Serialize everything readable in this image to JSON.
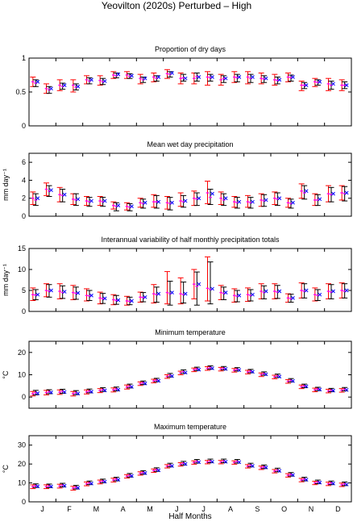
{
  "figure_title": "Yeovilton (2020s) Perturbed – High",
  "x_axis_label": "Half Months",
  "month_labels": [
    "J",
    "F",
    "M",
    "A",
    "M",
    "J",
    "J",
    "A",
    "S",
    "O",
    "N",
    "D"
  ],
  "colors": {
    "red": "#ff0000",
    "black": "#000000",
    "blue": "#0000ff",
    "magenta": "#ff00ff"
  },
  "legend_note": "",
  "chart_data": [
    {
      "type": "scatter",
      "title": "Proportion of dry days",
      "ylabel": "",
      "ylim": [
        0,
        1
      ],
      "yticks": [
        0,
        0.5,
        1
      ],
      "x": [
        1,
        2,
        3,
        4,
        5,
        6,
        7,
        8,
        9,
        10,
        11,
        12,
        13,
        14,
        15,
        16,
        17,
        18,
        19,
        20,
        21,
        22,
        23,
        24
      ],
      "series": [
        {
          "values": [
            0.65,
            0.55,
            0.6,
            0.6,
            0.68,
            0.67,
            0.75,
            0.75,
            0.7,
            0.72,
            0.77,
            0.7,
            0.7,
            0.72,
            0.68,
            0.72,
            0.72,
            0.7,
            0.68,
            0.72,
            0.6,
            0.65,
            0.62,
            0.6
          ],
          "low": [
            0.58,
            0.48,
            0.52,
            0.5,
            0.62,
            0.6,
            0.7,
            0.7,
            0.62,
            0.65,
            0.7,
            0.62,
            0.62,
            0.6,
            0.6,
            0.64,
            0.62,
            0.62,
            0.6,
            0.65,
            0.52,
            0.58,
            0.52,
            0.52
          ],
          "high": [
            0.72,
            0.62,
            0.68,
            0.68,
            0.74,
            0.74,
            0.8,
            0.8,
            0.76,
            0.78,
            0.83,
            0.78,
            0.78,
            0.8,
            0.76,
            0.8,
            0.8,
            0.78,
            0.76,
            0.78,
            0.66,
            0.7,
            0.7,
            0.68
          ]
        },
        {
          "values": [
            0.63,
            0.53,
            0.58,
            0.57,
            0.66,
            0.65,
            0.74,
            0.73,
            0.68,
            0.7,
            0.76,
            0.71,
            0.73,
            0.71,
            0.7,
            0.71,
            0.7,
            0.69,
            0.67,
            0.71,
            0.6,
            0.64,
            0.6,
            0.6
          ],
          "low": [
            0.58,
            0.48,
            0.54,
            0.53,
            0.62,
            0.61,
            0.71,
            0.7,
            0.64,
            0.66,
            0.72,
            0.66,
            0.66,
            0.66,
            0.64,
            0.65,
            0.64,
            0.64,
            0.62,
            0.66,
            0.55,
            0.6,
            0.54,
            0.55
          ],
          "high": [
            0.68,
            0.58,
            0.63,
            0.62,
            0.71,
            0.7,
            0.78,
            0.77,
            0.72,
            0.74,
            0.8,
            0.76,
            0.78,
            0.76,
            0.74,
            0.76,
            0.76,
            0.74,
            0.72,
            0.75,
            0.64,
            0.68,
            0.66,
            0.65
          ]
        },
        {
          "values": [
            0.65,
            0.55,
            0.6,
            0.58,
            0.68,
            0.66,
            0.76,
            0.74,
            0.7,
            0.72,
            0.78,
            0.7,
            0.72,
            0.72,
            0.7,
            0.72,
            0.72,
            0.7,
            0.68,
            0.72,
            0.6,
            0.65,
            0.62,
            0.6
          ]
        }
      ]
    },
    {
      "type": "scatter",
      "title": "Mean wet day precipitation",
      "ylabel": "mm day⁻¹",
      "ylim": [
        0,
        7
      ],
      "yticks": [
        0,
        2,
        4,
        6
      ],
      "x": [
        1,
        2,
        3,
        4,
        5,
        6,
        7,
        8,
        9,
        10,
        11,
        12,
        13,
        14,
        15,
        16,
        17,
        18,
        19,
        20,
        21,
        22,
        23,
        24
      ],
      "series": [
        {
          "values": [
            2.0,
            3.0,
            2.4,
            1.9,
            1.7,
            1.7,
            1.2,
            1.1,
            1.5,
            1.6,
            1.5,
            1.7,
            2.0,
            2.6,
            2.0,
            1.6,
            1.6,
            1.8,
            2.0,
            1.5,
            2.8,
            1.8,
            2.5,
            2.6
          ],
          "low": [
            1.3,
            2.3,
            1.6,
            1.3,
            1.2,
            1.2,
            0.8,
            0.7,
            1.0,
            1.0,
            0.8,
            1.1,
            1.2,
            1.4,
            1.3,
            1.0,
            1.0,
            1.1,
            1.3,
            1.0,
            2.0,
            1.2,
            1.6,
            1.8
          ],
          "high": [
            2.7,
            3.7,
            3.2,
            2.5,
            2.2,
            2.2,
            1.6,
            1.5,
            2.0,
            2.4,
            2.2,
            2.6,
            2.8,
            3.9,
            2.7,
            2.2,
            2.3,
            2.5,
            2.7,
            2.0,
            3.6,
            2.5,
            3.4,
            3.4
          ]
        },
        {
          "values": [
            1.8,
            2.8,
            2.3,
            1.8,
            1.6,
            1.6,
            1.1,
            1.0,
            1.4,
            1.6,
            1.4,
            1.6,
            1.9,
            2.1,
            1.8,
            1.5,
            1.5,
            1.7,
            1.9,
            1.4,
            2.6,
            1.8,
            2.4,
            2.5
          ],
          "low": [
            1.2,
            2.2,
            1.6,
            1.2,
            1.1,
            1.1,
            0.6,
            0.6,
            0.9,
            0.9,
            0.7,
            1.0,
            1.2,
            1.3,
            1.2,
            0.9,
            0.9,
            1.1,
            1.2,
            0.9,
            1.9,
            1.2,
            1.6,
            1.7
          ],
          "high": [
            2.5,
            3.4,
            3.0,
            2.5,
            2.1,
            2.1,
            1.5,
            1.4,
            1.9,
            2.3,
            2.1,
            2.3,
            2.6,
            3.0,
            2.5,
            2.1,
            2.1,
            2.4,
            2.6,
            1.9,
            3.4,
            2.4,
            3.2,
            3.3
          ]
        },
        {
          "values": [
            2.0,
            2.9,
            2.4,
            1.9,
            1.7,
            1.7,
            1.2,
            1.1,
            1.5,
            1.6,
            1.5,
            1.7,
            2.0,
            2.5,
            2.0,
            1.6,
            1.6,
            1.8,
            2.0,
            1.5,
            2.8,
            1.9,
            2.5,
            2.6
          ]
        }
      ]
    },
    {
      "type": "scatter",
      "title": "Interannual variability of half monthly precipitation totals",
      "ylabel": "mm day⁻¹",
      "ylim": [
        0,
        15
      ],
      "yticks": [
        0,
        5,
        10,
        15
      ],
      "x": [
        1,
        2,
        3,
        4,
        5,
        6,
        7,
        8,
        9,
        10,
        11,
        12,
        13,
        14,
        15,
        16,
        17,
        18,
        19,
        20,
        21,
        22,
        23,
        24
      ],
      "series": [
        {
          "values": [
            4.0,
            5.0,
            4.8,
            4.5,
            3.8,
            3.2,
            2.8,
            2.5,
            3.4,
            4.2,
            4.5,
            4.2,
            6.5,
            5.5,
            4.5,
            3.8,
            4.0,
            4.8,
            4.8,
            3.2,
            5.0,
            4.0,
            4.8,
            5.0
          ],
          "low": [
            2.6,
            3.5,
            3.0,
            2.8,
            2.5,
            1.8,
            1.6,
            1.5,
            2.2,
            2.0,
            1.8,
            1.8,
            3.0,
            2.5,
            2.8,
            2.2,
            2.4,
            3.0,
            3.0,
            2.2,
            3.2,
            2.5,
            3.0,
            3.2
          ],
          "high": [
            5.6,
            6.6,
            6.6,
            6.2,
            5.4,
            4.6,
            4.0,
            3.6,
            4.6,
            6.4,
            9.5,
            8.0,
            10.0,
            13.0,
            6.2,
            5.4,
            5.6,
            6.6,
            6.6,
            4.2,
            6.8,
            5.6,
            6.6,
            6.8
          ]
        },
        {
          "values": [
            3.9,
            4.8,
            4.5,
            4.3,
            3.7,
            3.0,
            2.6,
            2.4,
            3.3,
            4.0,
            4.2,
            4.0,
            6.0,
            5.2,
            4.3,
            3.6,
            3.8,
            4.5,
            4.6,
            3.0,
            4.8,
            3.8,
            4.6,
            4.8
          ],
          "low": [
            2.8,
            3.4,
            3.1,
            2.9,
            2.6,
            1.9,
            1.7,
            1.6,
            2.3,
            2.2,
            1.5,
            2.0,
            1.5,
            1.8,
            2.8,
            2.3,
            2.5,
            3.0,
            3.1,
            2.2,
            3.2,
            2.6,
            3.0,
            3.2
          ],
          "high": [
            5.2,
            6.4,
            6.1,
            5.8,
            5.0,
            4.3,
            3.8,
            3.4,
            4.5,
            5.8,
            7.2,
            7.0,
            9.4,
            11.8,
            5.8,
            5.0,
            5.2,
            6.1,
            6.2,
            4.1,
            6.6,
            5.2,
            6.4,
            6.6
          ]
        },
        {
          "values": [
            4.0,
            5.0,
            4.7,
            4.4,
            3.8,
            3.1,
            2.7,
            2.5,
            3.4,
            4.2,
            4.5,
            4.2,
            6.5,
            5.4,
            4.5,
            3.8,
            4.0,
            4.8,
            4.8,
            3.2,
            5.0,
            4.0,
            4.8,
            5.0
          ]
        }
      ]
    },
    {
      "type": "scatter",
      "title": "Minimum temperature",
      "ylabel": "°C",
      "ylim": [
        -5,
        25
      ],
      "yticks": [
        0,
        10,
        20
      ],
      "x": [
        1,
        2,
        3,
        4,
        5,
        6,
        7,
        8,
        9,
        10,
        11,
        12,
        13,
        14,
        15,
        16,
        17,
        18,
        19,
        20,
        21,
        22,
        23,
        24
      ],
      "series": [
        {
          "values": [
            1.5,
            2.0,
            2.2,
            1.5,
            2.3,
            2.9,
            3.2,
            4.5,
            6.0,
            7.2,
            9.2,
            10.8,
            12.2,
            12.8,
            12.5,
            12.0,
            11.2,
            10.0,
            9.0,
            7.0,
            4.6,
            3.2,
            2.7,
            3.0
          ],
          "low": [
            0.5,
            1.0,
            1.2,
            0.5,
            1.4,
            2.0,
            2.3,
            3.6,
            5.2,
            6.4,
            8.4,
            10.0,
            11.4,
            12.0,
            11.7,
            11.2,
            10.4,
            9.2,
            8.2,
            6.2,
            3.8,
            2.4,
            1.9,
            2.2
          ],
          "high": [
            2.5,
            3.0,
            3.2,
            2.5,
            3.2,
            3.8,
            4.1,
            5.4,
            6.8,
            8.0,
            10.0,
            11.6,
            13.0,
            13.6,
            13.3,
            12.8,
            12.0,
            10.8,
            9.8,
            7.8,
            5.4,
            4.0,
            3.5,
            3.8
          ]
        },
        {
          "values": [
            2.0,
            2.4,
            2.6,
            2.0,
            2.7,
            3.3,
            3.6,
            4.9,
            6.4,
            7.6,
            9.8,
            11.4,
            12.6,
            13.2,
            12.9,
            12.4,
            11.6,
            10.5,
            9.5,
            7.5,
            5.0,
            3.6,
            3.1,
            3.5
          ],
          "low": [
            1.0,
            1.5,
            1.7,
            1.1,
            1.9,
            2.5,
            2.8,
            4.1,
            5.6,
            6.9,
            9.0,
            10.6,
            11.9,
            12.5,
            12.2,
            11.7,
            10.9,
            9.8,
            8.8,
            6.8,
            4.2,
            2.9,
            2.4,
            2.8
          ],
          "high": [
            3.0,
            3.3,
            3.5,
            2.9,
            3.6,
            4.2,
            4.5,
            5.8,
            7.2,
            8.4,
            10.6,
            12.2,
            13.4,
            14.0,
            13.7,
            13.2,
            12.4,
            11.3,
            10.3,
            8.3,
            5.8,
            4.4,
            3.9,
            4.3
          ]
        },
        {
          "values": [
            1.7,
            2.1,
            2.3,
            1.6,
            2.4,
            3.0,
            3.3,
            4.6,
            6.1,
            7.3,
            9.4,
            11.0,
            12.3,
            12.9,
            12.6,
            12.1,
            11.3,
            10.2,
            9.2,
            7.2,
            4.8,
            3.4,
            2.9,
            3.2
          ]
        }
      ]
    },
    {
      "type": "scatter",
      "title": "Maximum temperature",
      "ylabel": "°C",
      "ylim": [
        0,
        35
      ],
      "yticks": [
        0,
        10,
        20,
        30
      ],
      "x": [
        1,
        2,
        3,
        4,
        5,
        6,
        7,
        8,
        9,
        10,
        11,
        12,
        13,
        14,
        15,
        16,
        17,
        18,
        19,
        20,
        21,
        22,
        23,
        24
      ],
      "series": [
        {
          "values": [
            8.0,
            8.0,
            8.3,
            7.2,
            9.5,
            10.5,
            11.5,
            13.5,
            15.0,
            16.5,
            18.8,
            19.8,
            20.8,
            21.0,
            21.0,
            20.8,
            18.8,
            18.0,
            16.2,
            14.0,
            11.5,
            10.0,
            9.5,
            9.0
          ],
          "low": [
            7.0,
            7.0,
            7.3,
            6.2,
            8.5,
            9.5,
            10.5,
            12.6,
            14.1,
            15.6,
            17.9,
            18.9,
            19.9,
            20.1,
            20.1,
            19.9,
            17.9,
            17.1,
            15.3,
            13.1,
            10.6,
            9.1,
            8.6,
            8.1
          ],
          "high": [
            9.0,
            9.0,
            9.3,
            8.2,
            10.5,
            11.5,
            12.5,
            14.4,
            15.9,
            17.4,
            19.7,
            20.7,
            21.7,
            21.9,
            21.9,
            21.7,
            19.7,
            18.9,
            17.1,
            14.9,
            12.4,
            10.9,
            10.4,
            9.9
          ]
        },
        {
          "values": [
            8.5,
            8.4,
            8.8,
            7.7,
            10.0,
            11.0,
            12.0,
            14.0,
            15.5,
            17.0,
            19.4,
            20.4,
            21.4,
            21.6,
            21.6,
            21.4,
            19.4,
            18.5,
            16.8,
            14.5,
            12.0,
            10.5,
            10.0,
            9.5
          ],
          "low": [
            7.6,
            7.5,
            7.9,
            6.8,
            9.1,
            10.1,
            11.1,
            13.1,
            14.6,
            16.1,
            18.5,
            19.5,
            20.5,
            20.7,
            20.7,
            20.5,
            18.5,
            17.6,
            15.9,
            13.6,
            11.1,
            9.6,
            9.1,
            8.6
          ],
          "high": [
            9.5,
            9.4,
            9.8,
            8.7,
            11.0,
            12.0,
            13.0,
            15.0,
            16.5,
            18.0,
            20.4,
            21.4,
            22.4,
            22.6,
            22.6,
            22.4,
            20.4,
            19.5,
            17.8,
            15.5,
            13.0,
            11.5,
            11.0,
            10.5
          ]
        },
        {
          "values": [
            8.2,
            8.1,
            8.5,
            7.4,
            9.7,
            10.7,
            11.7,
            13.7,
            15.2,
            16.7,
            19.0,
            20.0,
            21.0,
            21.2,
            21.2,
            21.0,
            19.0,
            18.2,
            16.4,
            14.2,
            11.7,
            10.2,
            9.7,
            9.2
          ]
        }
      ]
    }
  ]
}
